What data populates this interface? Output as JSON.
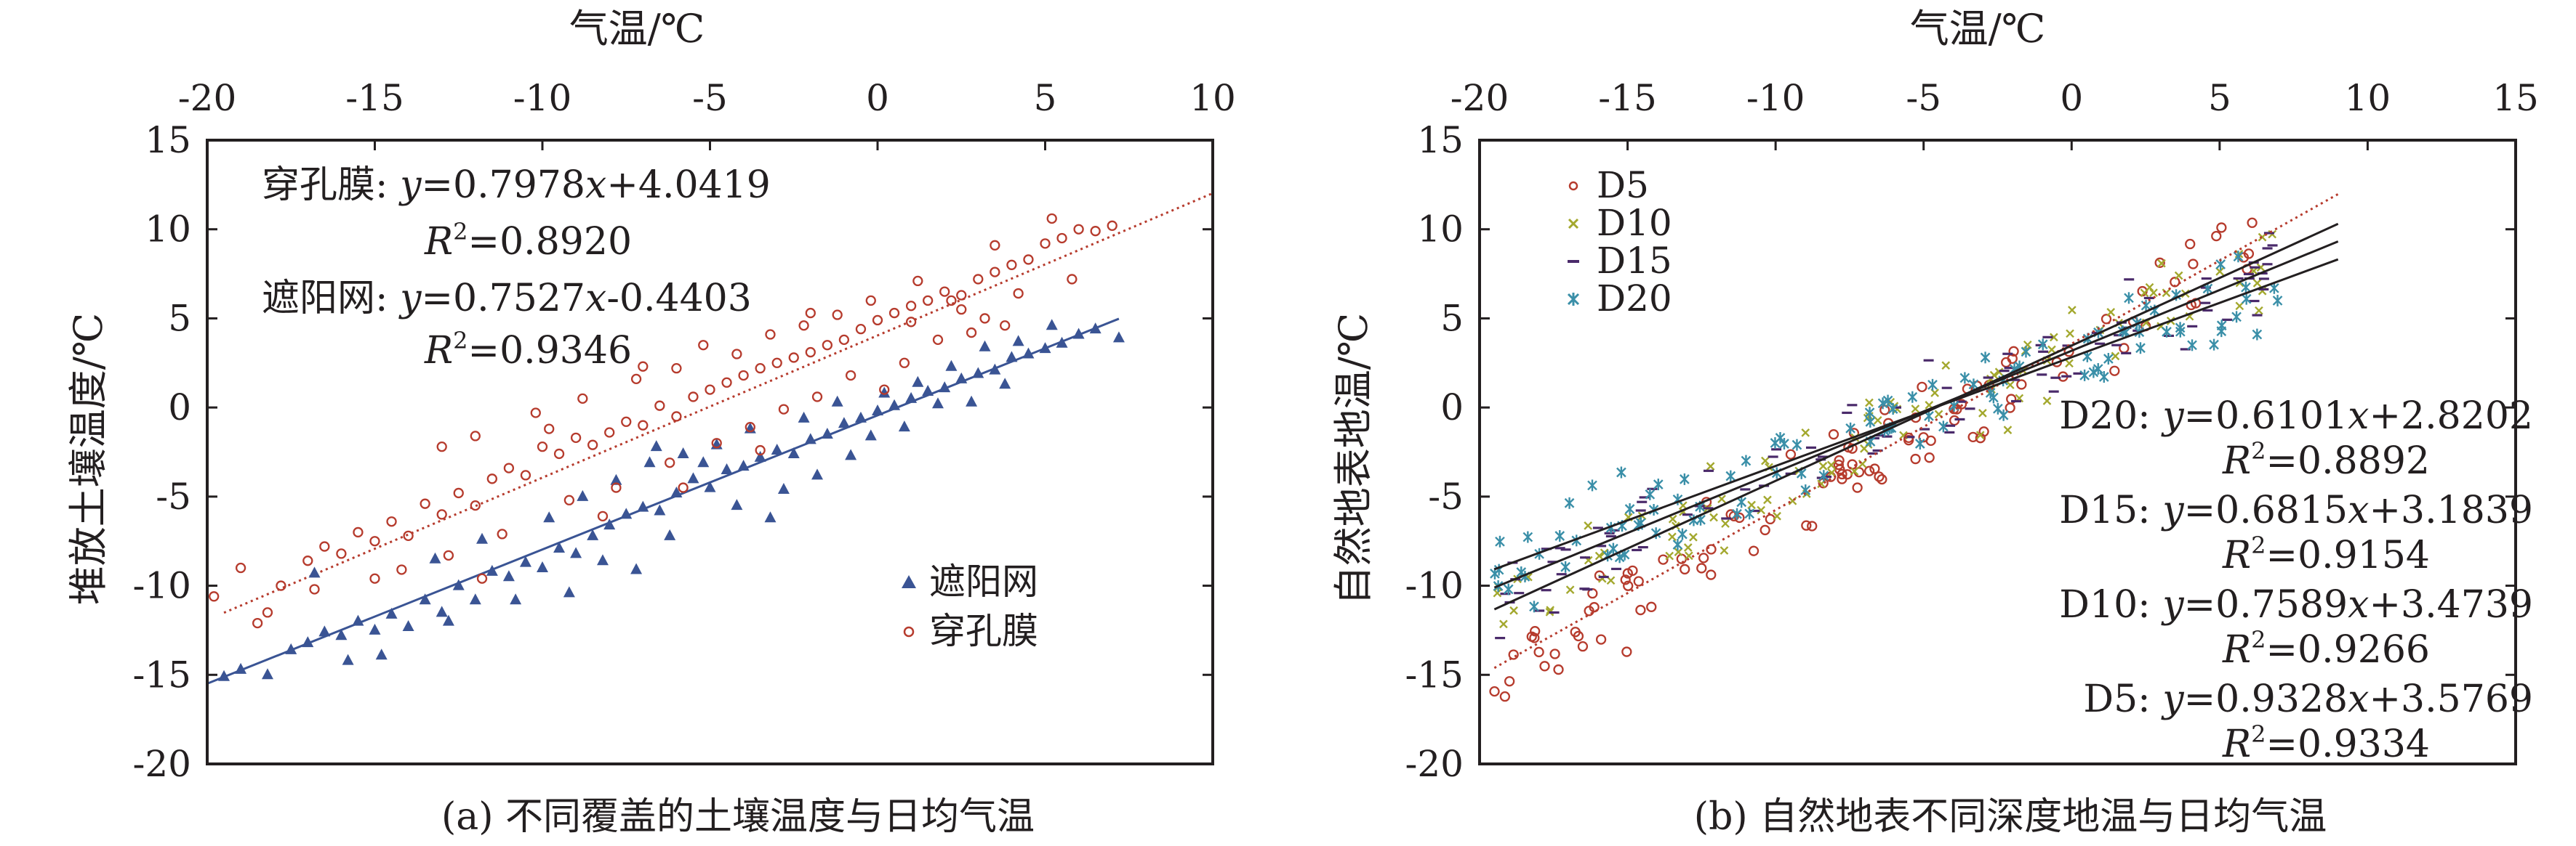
{
  "chart_data": [
    {
      "type": "scatter",
      "caption": "(a) 不同覆盖的土壤温度与日均气温",
      "xlabel": "气温/℃",
      "ylabel": "堆放土壤温度/℃",
      "xlim": [
        -20,
        10
      ],
      "ylim": [
        -20,
        15
      ],
      "xticks": [
        "-20",
        "-15",
        "-10",
        "-5",
        "0",
        "5",
        "10"
      ],
      "yticks": [
        "15",
        "10",
        "5",
        "0",
        "-5",
        "-10",
        "-15",
        "-20"
      ],
      "legend_position": "bottom-right",
      "series": [
        {
          "name": "遮阳网",
          "marker": "triangle",
          "color": "#3a5494",
          "slope": 0.7527,
          "intercept": -0.4403,
          "fit_range": [
            -20,
            7.2
          ],
          "fit_style": "solid",
          "points": [
            [
              -19.5,
              -15.1
            ],
            [
              -19.0,
              -14.7
            ],
            [
              -18.2,
              -15.0
            ],
            [
              -17.5,
              -13.6
            ],
            [
              -17.0,
              -13.2
            ],
            [
              -16.5,
              -12.6
            ],
            [
              -16.0,
              -12.8
            ],
            [
              -15.5,
              -12.0
            ],
            [
              -15.0,
              -12.5
            ],
            [
              -14.5,
              -11.6
            ],
            [
              -14.0,
              -12.3
            ],
            [
              -13.5,
              -10.8
            ],
            [
              -13.0,
              -11.5
            ],
            [
              -12.5,
              -10.0
            ],
            [
              -12.0,
              -10.8
            ],
            [
              -11.5,
              -9.2
            ],
            [
              -11.0,
              -9.5
            ],
            [
              -10.5,
              -8.7
            ],
            [
              -10.0,
              -9.0
            ],
            [
              -9.5,
              -7.9
            ],
            [
              -9.0,
              -8.2
            ],
            [
              -8.5,
              -7.2
            ],
            [
              -8.0,
              -6.6
            ],
            [
              -7.5,
              -6.0
            ],
            [
              -7.0,
              -5.6
            ],
            [
              -6.5,
              -5.8
            ],
            [
              -6.0,
              -4.8
            ],
            [
              -5.5,
              -4.0
            ],
            [
              -5.0,
              -4.5
            ],
            [
              -4.5,
              -3.5
            ],
            [
              -4.0,
              -3.3
            ],
            [
              -3.5,
              -2.8
            ],
            [
              -3.0,
              -2.4
            ],
            [
              -2.5,
              -2.6
            ],
            [
              -2.0,
              -1.8
            ],
            [
              -1.5,
              -1.5
            ],
            [
              -1.0,
              -0.9
            ],
            [
              -0.5,
              -0.6
            ],
            [
              0.0,
              -0.2
            ],
            [
              0.5,
              0.1
            ],
            [
              1.0,
              0.5
            ],
            [
              1.5,
              0.9
            ],
            [
              2.0,
              1.1
            ],
            [
              2.5,
              1.6
            ],
            [
              3.0,
              1.9
            ],
            [
              3.5,
              2.1
            ],
            [
              4.0,
              2.8
            ],
            [
              4.5,
              3.0
            ],
            [
              5.0,
              3.3
            ],
            [
              5.5,
              3.6
            ],
            [
              6.0,
              4.1
            ],
            [
              6.5,
              4.4
            ],
            [
              7.2,
              3.9
            ],
            [
              -16.8,
              -9.3
            ],
            [
              -13.2,
              -8.5
            ],
            [
              -11.8,
              -7.4
            ],
            [
              -9.8,
              -6.2
            ],
            [
              -8.8,
              -5.0
            ],
            [
              -7.8,
              -4.1
            ],
            [
              -6.8,
              -3.1
            ],
            [
              -5.8,
              -2.6
            ],
            [
              -4.8,
              -2.1
            ],
            [
              -3.8,
              -1.2
            ],
            [
              -2.2,
              -0.6
            ],
            [
              -1.2,
              0.3
            ],
            [
              0.2,
              0.8
            ],
            [
              1.2,
              1.4
            ],
            [
              2.2,
              2.3
            ],
            [
              3.2,
              3.4
            ],
            [
              4.2,
              3.7
            ],
            [
              5.2,
              4.6
            ],
            [
              -14.8,
              -13.9
            ],
            [
              -12.8,
              -12.0
            ],
            [
              -10.8,
              -10.8
            ],
            [
              -8.2,
              -8.6
            ],
            [
              -6.2,
              -7.2
            ],
            [
              -4.2,
              -5.5
            ],
            [
              -2.8,
              -4.6
            ],
            [
              -1.8,
              -3.8
            ],
            [
              -0.8,
              -2.7
            ],
            [
              0.8,
              -1.1
            ],
            [
              2.8,
              0.3
            ],
            [
              3.8,
              1.3
            ],
            [
              -3.2,
              -6.2
            ],
            [
              -7.2,
              -9.1
            ],
            [
              -9.2,
              -10.4
            ],
            [
              -15.8,
              -14.2
            ],
            [
              -6.6,
              -2.2
            ],
            [
              -5.2,
              -3.1
            ],
            [
              -0.2,
              -1.6
            ],
            [
              1.8,
              0.2
            ]
          ]
        },
        {
          "name": "穿孔膜",
          "marker": "circle",
          "color": "#b63b2d",
          "slope": 0.7978,
          "intercept": 4.0419,
          "fit_range": [
            -19.5,
            10.0
          ],
          "fit_style": "dotted",
          "points": [
            [
              -19.8,
              -10.6
            ],
            [
              -19.0,
              -9.0
            ],
            [
              -18.2,
              -11.5
            ],
            [
              -17.8,
              -10.0
            ],
            [
              -17.0,
              -8.6
            ],
            [
              -16.5,
              -7.8
            ],
            [
              -16.0,
              -8.2
            ],
            [
              -15.5,
              -7.0
            ],
            [
              -15.0,
              -7.5
            ],
            [
              -14.5,
              -6.4
            ],
            [
              -14.0,
              -7.2
            ],
            [
              -13.5,
              -5.4
            ],
            [
              -13.0,
              -6.0
            ],
            [
              -12.5,
              -4.8
            ],
            [
              -12.0,
              -5.5
            ],
            [
              -11.5,
              -4.0
            ],
            [
              -11.0,
              -3.4
            ],
            [
              -10.5,
              -3.8
            ],
            [
              -10.0,
              -2.2
            ],
            [
              -9.5,
              -2.6
            ],
            [
              -9.0,
              -1.7
            ],
            [
              -8.5,
              -2.1
            ],
            [
              -8.0,
              -1.4
            ],
            [
              -7.5,
              -0.8
            ],
            [
              -7.0,
              -1.0
            ],
            [
              -6.5,
              0.1
            ],
            [
              -6.0,
              -0.5
            ],
            [
              -5.5,
              0.6
            ],
            [
              -5.0,
              1.0
            ],
            [
              -4.5,
              1.4
            ],
            [
              -4.0,
              1.8
            ],
            [
              -3.5,
              2.2
            ],
            [
              -3.0,
              2.5
            ],
            [
              -2.5,
              2.8
            ],
            [
              -2.0,
              3.1
            ],
            [
              -1.5,
              3.5
            ],
            [
              -1.0,
              3.8
            ],
            [
              -0.5,
              4.4
            ],
            [
              0.0,
              4.9
            ],
            [
              0.5,
              5.3
            ],
            [
              1.0,
              5.7
            ],
            [
              1.5,
              6.0
            ],
            [
              2.0,
              6.5
            ],
            [
              2.5,
              6.3
            ],
            [
              3.0,
              7.2
            ],
            [
              3.5,
              7.6
            ],
            [
              4.0,
              8.0
            ],
            [
              4.5,
              8.3
            ],
            [
              5.0,
              9.2
            ],
            [
              5.5,
              9.5
            ],
            [
              6.0,
              10.0
            ],
            [
              6.5,
              9.9
            ],
            [
              7.0,
              10.2
            ],
            [
              5.2,
              10.6
            ],
            [
              3.5,
              9.1
            ],
            [
              -13.0,
              -2.2
            ],
            [
              -12.0,
              -1.6
            ],
            [
              -10.2,
              -0.3
            ],
            [
              -8.8,
              0.5
            ],
            [
              -7.2,
              1.6
            ],
            [
              -6.0,
              2.2
            ],
            [
              -5.2,
              3.5
            ],
            [
              -4.2,
              3.0
            ],
            [
              -3.2,
              4.1
            ],
            [
              -2.2,
              4.6
            ],
            [
              -1.2,
              5.2
            ],
            [
              -0.2,
              6.0
            ],
            [
              1.2,
              7.1
            ],
            [
              2.2,
              6.0
            ],
            [
              3.2,
              5.0
            ],
            [
              -15.0,
              -9.6
            ],
            [
              -14.2,
              -9.1
            ],
            [
              -12.8,
              -8.3
            ],
            [
              -11.2,
              -7.1
            ],
            [
              -9.2,
              -5.2
            ],
            [
              -7.8,
              -4.5
            ],
            [
              -6.2,
              -3.1
            ],
            [
              -4.8,
              -2.0
            ],
            [
              -3.8,
              -1.1
            ],
            [
              -2.8,
              -0.1
            ],
            [
              -1.8,
              0.6
            ],
            [
              -0.8,
              1.8
            ],
            [
              0.8,
              2.5
            ],
            [
              1.8,
              3.8
            ],
            [
              2.8,
              4.2
            ],
            [
              3.8,
              4.6
            ],
            [
              -16.8,
              -10.2
            ],
            [
              -18.5,
              -12.1
            ],
            [
              -11.8,
              -9.6
            ],
            [
              -8.2,
              -6.1
            ],
            [
              -5.8,
              -4.5
            ],
            [
              -3.5,
              -2.4
            ],
            [
              0.2,
              1.0
            ],
            [
              4.2,
              6.4
            ],
            [
              5.8,
              7.2
            ],
            [
              -9.8,
              -1.2
            ],
            [
              -7.0,
              2.3
            ],
            [
              -2.0,
              5.3
            ],
            [
              1.0,
              4.8
            ],
            [
              2.5,
              5.5
            ]
          ]
        }
      ],
      "equations": {
        "perforated": {
          "label": "穿孔膜: ",
          "var_y": "y",
          "eq_mid": "=0.7978",
          "var_x": "x",
          "eq_end": "+4.0419",
          "r_label": "R",
          "r_sup": "2",
          "r_val": "=0.8920"
        },
        "shade": {
          "label": "遮阳网: ",
          "var_y": "y",
          "eq_mid": "=0.7527",
          "var_x": "x",
          "eq_end": "-0.4403",
          "r_label": "R",
          "r_sup": "2",
          "r_val": "=0.9346"
        }
      }
    },
    {
      "type": "scatter",
      "caption": "(b) 自然地表不同深度地温与日均气温",
      "xlabel": "气温/℃",
      "ylabel": "自然地表地温/℃",
      "xlim": [
        -20,
        15
      ],
      "ylim": [
        -20,
        15
      ],
      "xticks": [
        "-20",
        "-15",
        "-10",
        "-5",
        "0",
        "5",
        "10",
        "15"
      ],
      "yticks": [
        "15",
        "10",
        "5",
        "0",
        "-5",
        "-10",
        "-15",
        "-20"
      ],
      "legend_position": "top-left",
      "series": [
        {
          "name": "D5",
          "marker": "circle",
          "color": "#b63b2d",
          "slope": 0.9328,
          "intercept": 3.5769,
          "fit_range": [
            -19.5,
            9.0
          ],
          "fit_style": "dotted"
        },
        {
          "name": "D10",
          "marker": "x",
          "color": "#a3a82e",
          "slope": 0.7589,
          "intercept": 3.4739,
          "fit_range": [
            -19.5,
            9.0
          ],
          "fit_style": "solid"
        },
        {
          "name": "D15",
          "marker": "dash",
          "color": "#4a2a6a",
          "slope": 0.6815,
          "intercept": 3.1839,
          "fit_range": [
            -19.5,
            9.0
          ],
          "fit_style": "solid"
        },
        {
          "name": "D20",
          "marker": "star",
          "color": "#3a8fa8",
          "slope": 0.6101,
          "intercept": 2.8202,
          "fit_range": [
            -19.5,
            9.0
          ],
          "fit_style": "solid"
        }
      ],
      "equations": [
        {
          "label": "D20: ",
          "var_y": "y",
          "eq_mid": "=0.6101",
          "var_x": "x",
          "eq_end": "+2.8202",
          "r_label": "R",
          "r_sup": "2",
          "r_val": "=0.8892"
        },
        {
          "label": "D15: ",
          "var_y": "y",
          "eq_mid": "=0.6815",
          "var_x": "x",
          "eq_end": "+3.1839",
          "r_label": "R",
          "r_sup": "2",
          "r_val": "=0.9154"
        },
        {
          "label": "D10: ",
          "var_y": "y",
          "eq_mid": "=0.7589",
          "var_x": "x",
          "eq_end": "+3.4739",
          "r_label": "R",
          "r_sup": "2",
          "r_val": "=0.9266"
        },
        {
          "label": "D5: ",
          "var_y": "y",
          "eq_mid": "=0.9328",
          "var_x": "x",
          "eq_end": "+3.5769",
          "r_label": "R",
          "r_sup": "2",
          "r_val": "=0.9334"
        }
      ]
    }
  ]
}
